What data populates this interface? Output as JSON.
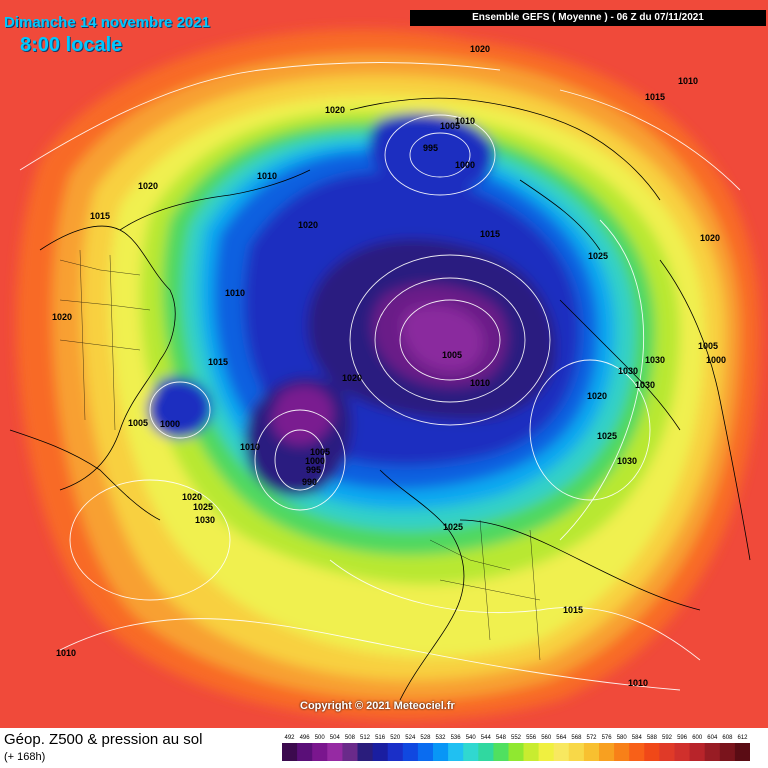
{
  "header": {
    "date": "Dimanche 14 novembre 2021",
    "time": "8:00 locale",
    "model": "Ensemble GEFS  ( Moyenne )  -  06 Z du 07/11/2021"
  },
  "copyright": "Copyright © 2021 Meteociel.fr",
  "footer": {
    "title": "Géop. Z500 & pression au sol",
    "subtitle": "(+ 168h)"
  },
  "legend": {
    "values": [
      "492",
      "496",
      "500",
      "504",
      "508",
      "512",
      "516",
      "520",
      "524",
      "528",
      "532",
      "536",
      "540",
      "544",
      "548",
      "552",
      "556",
      "560",
      "564",
      "568",
      "572",
      "576",
      "580",
      "584",
      "588",
      "592",
      "596",
      "600",
      "604",
      "608",
      "612"
    ],
    "colors": [
      "#3c0a4e",
      "#5a0f78",
      "#7a168e",
      "#962aa3",
      "#6a2a8a",
      "#2a1d7c",
      "#1a1ea0",
      "#1a2fc8",
      "#1048e0",
      "#0a6cf0",
      "#0896f6",
      "#20c0f2",
      "#30d8d0",
      "#30d8a0",
      "#50e060",
      "#90e830",
      "#c8ec30",
      "#f0f040",
      "#f8e860",
      "#f8d848",
      "#f8c030",
      "#f8a020",
      "#f88018",
      "#f86018",
      "#f04818",
      "#e03a28",
      "#d0302c",
      "#b8242a",
      "#981c24",
      "#7a141c",
      "#5a0c14"
    ]
  },
  "pressure_labels": [
    {
      "text": "1020"
    },
    {
      "text": "1010"
    },
    {
      "text": "1015"
    },
    {
      "text": "1020"
    },
    {
      "text": "1005"
    },
    {
      "text": "1010"
    },
    {
      "text": "995"
    },
    {
      "text": "1000"
    },
    {
      "text": "1020"
    },
    {
      "text": "1015"
    },
    {
      "text": "1010"
    },
    {
      "text": "1020"
    },
    {
      "text": "1015"
    },
    {
      "text": "1020"
    },
    {
      "text": "1010"
    },
    {
      "text": "1020"
    },
    {
      "text": "1025"
    },
    {
      "text": "1005"
    },
    {
      "text": "1010"
    },
    {
      "text": "1020"
    },
    {
      "text": "1030"
    },
    {
      "text": "1030"
    },
    {
      "text": "1005"
    },
    {
      "text": "1000"
    },
    {
      "text": "1030"
    },
    {
      "text": "1020"
    },
    {
      "text": "1025"
    },
    {
      "text": "1030"
    },
    {
      "text": "1015"
    },
    {
      "text": "1005"
    },
    {
      "text": "1000"
    },
    {
      "text": "1010"
    },
    {
      "text": "1005"
    },
    {
      "text": "1000"
    },
    {
      "text": "995"
    },
    {
      "text": "990"
    },
    {
      "text": "1020"
    },
    {
      "text": "1025"
    },
    {
      "text": "1030"
    },
    {
      "text": "1025"
    },
    {
      "text": "1015"
    },
    {
      "text": "1010"
    },
    {
      "text": "1010"
    }
  ]
}
